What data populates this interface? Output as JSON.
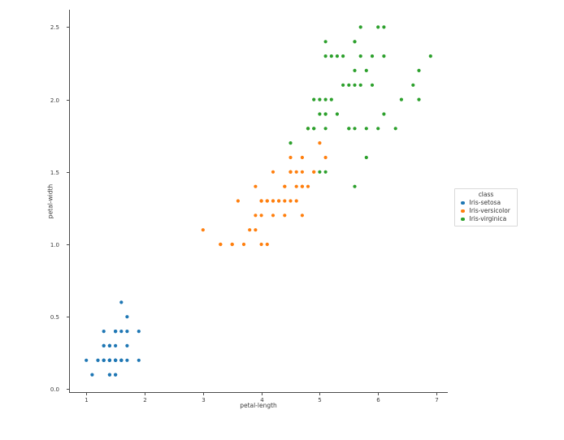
{
  "chart_data": {
    "type": "scatter",
    "title": "",
    "xlabel": "petal-length",
    "ylabel": "petal-width",
    "xlim": [
      0.705,
      7.195
    ],
    "ylim": [
      -0.02,
      2.62
    ],
    "grid": false,
    "xticks": {
      "values": [
        1,
        2,
        3,
        4,
        5,
        6,
        7
      ],
      "labels": [
        "1",
        "2",
        "3",
        "4",
        "5",
        "6",
        "7"
      ]
    },
    "yticks": {
      "values": [
        0.0,
        0.5,
        1.0,
        1.5,
        2.0,
        2.5
      ],
      "labels": [
        "0.0",
        "0.5",
        "1.0",
        "1.5",
        "2.0",
        "2.5"
      ]
    },
    "legend": {
      "title": "class",
      "position": "right-outside"
    },
    "series": [
      {
        "name": "Iris-setosa",
        "color": "#1f77b4",
        "points": [
          [
            1.4,
            0.2
          ],
          [
            1.4,
            0.2
          ],
          [
            1.3,
            0.2
          ],
          [
            1.5,
            0.2
          ],
          [
            1.4,
            0.2
          ],
          [
            1.7,
            0.4
          ],
          [
            1.4,
            0.3
          ],
          [
            1.5,
            0.2
          ],
          [
            1.4,
            0.2
          ],
          [
            1.5,
            0.1
          ],
          [
            1.5,
            0.2
          ],
          [
            1.6,
            0.2
          ],
          [
            1.4,
            0.1
          ],
          [
            1.1,
            0.1
          ],
          [
            1.2,
            0.2
          ],
          [
            1.5,
            0.4
          ],
          [
            1.3,
            0.4
          ],
          [
            1.4,
            0.3
          ],
          [
            1.7,
            0.3
          ],
          [
            1.5,
            0.3
          ],
          [
            1.7,
            0.2
          ],
          [
            1.5,
            0.4
          ],
          [
            1.0,
            0.2
          ],
          [
            1.7,
            0.5
          ],
          [
            1.9,
            0.2
          ],
          [
            1.6,
            0.2
          ],
          [
            1.6,
            0.4
          ],
          [
            1.5,
            0.2
          ],
          [
            1.4,
            0.2
          ],
          [
            1.6,
            0.2
          ],
          [
            1.6,
            0.2
          ],
          [
            1.5,
            0.4
          ],
          [
            1.5,
            0.1
          ],
          [
            1.4,
            0.2
          ],
          [
            1.5,
            0.2
          ],
          [
            1.2,
            0.2
          ],
          [
            1.3,
            0.2
          ],
          [
            1.4,
            0.1
          ],
          [
            1.3,
            0.2
          ],
          [
            1.5,
            0.2
          ],
          [
            1.3,
            0.3
          ],
          [
            1.3,
            0.3
          ],
          [
            1.3,
            0.2
          ],
          [
            1.6,
            0.6
          ],
          [
            1.9,
            0.4
          ],
          [
            1.4,
            0.3
          ],
          [
            1.6,
            0.2
          ],
          [
            1.4,
            0.2
          ],
          [
            1.5,
            0.2
          ],
          [
            1.4,
            0.2
          ]
        ]
      },
      {
        "name": "Iris-versicolor",
        "color": "#ff7f0e",
        "points": [
          [
            4.7,
            1.4
          ],
          [
            4.5,
            1.5
          ],
          [
            4.9,
            1.5
          ],
          [
            4.0,
            1.3
          ],
          [
            4.6,
            1.5
          ],
          [
            4.5,
            1.3
          ],
          [
            4.7,
            1.6
          ],
          [
            3.3,
            1.0
          ],
          [
            4.6,
            1.3
          ],
          [
            3.9,
            1.4
          ],
          [
            3.5,
            1.0
          ],
          [
            4.2,
            1.5
          ],
          [
            4.0,
            1.0
          ],
          [
            4.7,
            1.4
          ],
          [
            3.6,
            1.3
          ],
          [
            4.4,
            1.4
          ],
          [
            4.5,
            1.5
          ],
          [
            4.1,
            1.0
          ],
          [
            4.5,
            1.5
          ],
          [
            3.9,
            1.1
          ],
          [
            4.8,
            1.8
          ],
          [
            4.0,
            1.3
          ],
          [
            4.9,
            1.5
          ],
          [
            4.7,
            1.2
          ],
          [
            4.3,
            1.3
          ],
          [
            4.4,
            1.4
          ],
          [
            4.8,
            1.4
          ],
          [
            5.0,
            1.7
          ],
          [
            4.5,
            1.5
          ],
          [
            3.5,
            1.0
          ],
          [
            3.8,
            1.1
          ],
          [
            3.7,
            1.0
          ],
          [
            3.9,
            1.2
          ],
          [
            5.1,
            1.6
          ],
          [
            4.5,
            1.5
          ],
          [
            4.5,
            1.6
          ],
          [
            4.7,
            1.5
          ],
          [
            4.4,
            1.3
          ],
          [
            4.1,
            1.3
          ],
          [
            4.0,
            1.3
          ],
          [
            4.4,
            1.2
          ],
          [
            4.6,
            1.4
          ],
          [
            4.0,
            1.2
          ],
          [
            3.3,
            1.0
          ],
          [
            4.2,
            1.3
          ],
          [
            4.2,
            1.2
          ],
          [
            4.2,
            1.3
          ],
          [
            4.3,
            1.3
          ],
          [
            3.0,
            1.1
          ],
          [
            4.1,
            1.3
          ]
        ]
      },
      {
        "name": "Iris-virginica",
        "color": "#2ca02c",
        "points": [
          [
            6.0,
            2.5
          ],
          [
            5.1,
            1.9
          ],
          [
            5.9,
            2.1
          ],
          [
            5.6,
            1.8
          ],
          [
            5.8,
            2.2
          ],
          [
            6.6,
            2.1
          ],
          [
            4.5,
            1.7
          ],
          [
            6.3,
            1.8
          ],
          [
            5.8,
            1.8
          ],
          [
            6.1,
            2.5
          ],
          [
            5.1,
            2.0
          ],
          [
            5.3,
            1.9
          ],
          [
            5.5,
            2.1
          ],
          [
            5.0,
            2.0
          ],
          [
            5.1,
            2.4
          ],
          [
            5.3,
            2.3
          ],
          [
            5.5,
            1.8
          ],
          [
            6.7,
            2.2
          ],
          [
            6.9,
            2.3
          ],
          [
            5.0,
            1.5
          ],
          [
            5.7,
            2.3
          ],
          [
            4.9,
            2.0
          ],
          [
            6.7,
            2.0
          ],
          [
            4.9,
            1.8
          ],
          [
            5.7,
            2.1
          ],
          [
            6.0,
            1.8
          ],
          [
            4.8,
            1.8
          ],
          [
            4.9,
            1.8
          ],
          [
            5.6,
            2.1
          ],
          [
            5.8,
            1.6
          ],
          [
            6.1,
            1.9
          ],
          [
            6.4,
            2.0
          ],
          [
            5.6,
            2.2
          ],
          [
            5.1,
            1.5
          ],
          [
            5.6,
            1.4
          ],
          [
            6.1,
            2.3
          ],
          [
            5.6,
            2.4
          ],
          [
            5.5,
            1.8
          ],
          [
            4.8,
            1.8
          ],
          [
            5.4,
            2.1
          ],
          [
            5.6,
            2.4
          ],
          [
            5.1,
            2.3
          ],
          [
            5.1,
            1.9
          ],
          [
            5.9,
            2.3
          ],
          [
            5.7,
            2.5
          ],
          [
            5.2,
            2.3
          ],
          [
            5.0,
            1.9
          ],
          [
            5.2,
            2.0
          ],
          [
            5.4,
            2.3
          ],
          [
            5.1,
            1.8
          ]
        ]
      }
    ]
  }
}
